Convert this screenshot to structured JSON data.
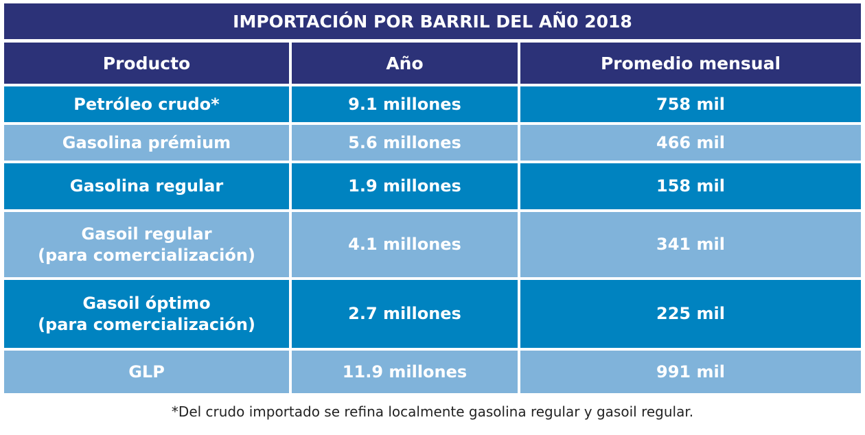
{
  "title": "IMPORTACIÓN POR BARRIL DEL AÑ0 2018",
  "headers": [
    "Producto",
    "Año",
    "Promedio mensual"
  ],
  "rows": [
    {
      "product": "Petróleo crudo*",
      "product_line2": "",
      "year": "9.1 millones",
      "monthly": "758 mil"
    },
    {
      "product": "Gasolina prémium",
      "product_line2": "",
      "year": "5.6 millones",
      "monthly": "466 mil"
    },
    {
      "product": "Gasolina regular",
      "product_line2": "",
      "year": "1.9 millones",
      "monthly": "158 mil"
    },
    {
      "product": "Gasoil regular",
      "product_line2": "(para comercialización)",
      "year": "4.1 millones",
      "monthly": "341 mil"
    },
    {
      "product": "Gasoil óptimo",
      "product_line2": "(para comercialización)",
      "year": "2.7 millones",
      "monthly": "225 mil"
    },
    {
      "product": "GLP",
      "product_line2": "",
      "year": "11.9 millones",
      "monthly": "991 mil"
    }
  ],
  "footnote": "*Del crudo importado se refina localmente gasolina regular y gasoil regular.",
  "colors": {
    "header": "#2c3278",
    "row_dark": "#0083c0",
    "row_light": "#80b3da"
  }
}
